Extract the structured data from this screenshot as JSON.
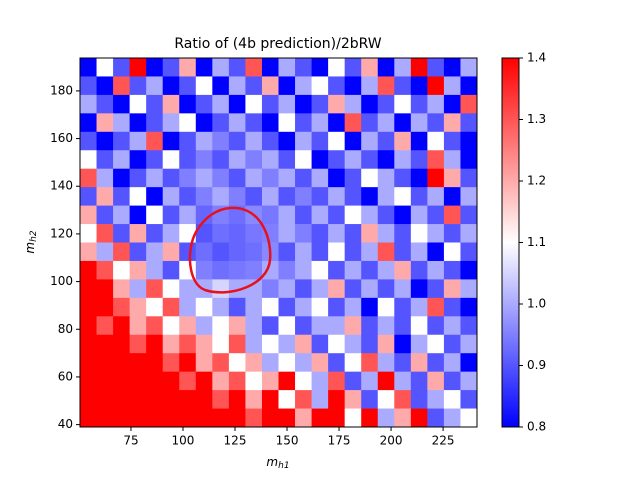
{
  "chart_data": {
    "type": "heatmap",
    "title": "Ratio of (4b prediction)/2bRW",
    "xlabel": {
      "base": "m",
      "sub": "h1"
    },
    "ylabel": {
      "base": "m",
      "sub": "h2"
    },
    "xlim": [
      50.5,
      241.3
    ],
    "ylim": [
      39,
      193.8
    ],
    "xticks": [
      75,
      100,
      125,
      150,
      175,
      200,
      225
    ],
    "yticks": [
      40,
      60,
      80,
      100,
      120,
      140,
      160,
      180
    ],
    "cmap": "bwr",
    "colorbar": {
      "vmin": 0.8,
      "vmax": 1.4,
      "ticks": [
        0.8,
        0.9,
        {
          "value": 1,
          "label": "1.0"
        },
        1.1,
        1.2,
        1.3,
        1.4
      ]
    },
    "z": [
      [
        0.8,
        1.1,
        0.9,
        1.4,
        0.8,
        0.9,
        1.2,
        0.8,
        1.0,
        0.9,
        1.3,
        0.8,
        1.0,
        0.9,
        0.8,
        1.1,
        0.9,
        1.2,
        0.8,
        1.0,
        1.4,
        0.9,
        0.8,
        1.0
      ],
      [
        0.9,
        0.8,
        1.3,
        0.9,
        1.0,
        0.8,
        0.9,
        1.1,
        0.8,
        1.0,
        0.9,
        1.2,
        0.8,
        1.0,
        1.1,
        0.9,
        0.8,
        1.0,
        1.3,
        0.9,
        0.8,
        1.4,
        1.0,
        0.8
      ],
      [
        1.0,
        0.9,
        0.8,
        1.1,
        0.9,
        1.2,
        0.8,
        0.9,
        1.0,
        0.8,
        1.1,
        0.9,
        1.0,
        0.8,
        0.9,
        1.2,
        1.0,
        0.8,
        0.9,
        1.1,
        0.9,
        1.0,
        0.8,
        1.3
      ],
      [
        0.8,
        1.2,
        1.0,
        0.8,
        0.9,
        1.0,
        1.1,
        0.8,
        0.9,
        1.0,
        0.9,
        0.8,
        1.1,
        0.9,
        1.0,
        0.8,
        1.3,
        0.9,
        1.0,
        0.8,
        1.0,
        0.9,
        1.2,
        0.9
      ],
      [
        0.9,
        0.8,
        0.9,
        1.0,
        1.3,
        0.8,
        0.9,
        1.0,
        0.95,
        0.9,
        1.0,
        0.9,
        0.8,
        1.0,
        0.9,
        1.1,
        0.8,
        1.0,
        0.9,
        1.2,
        0.8,
        1.1,
        0.9,
        0.8
      ],
      [
        1.1,
        0.9,
        1.0,
        0.8,
        0.9,
        1.1,
        0.9,
        0.95,
        0.9,
        1.0,
        0.95,
        1.0,
        0.9,
        1.1,
        0.8,
        0.9,
        1.0,
        0.9,
        0.8,
        1.0,
        0.9,
        1.3,
        1.0,
        0.8
      ],
      [
        1.3,
        1.0,
        0.8,
        0.9,
        1.0,
        0.9,
        0.95,
        1.0,
        0.95,
        0.9,
        1.0,
        0.95,
        1.0,
        0.9,
        1.0,
        0.8,
        0.9,
        1.1,
        1.0,
        0.9,
        0.8,
        1.4,
        1.2,
        0.9
      ],
      [
        0.9,
        1.2,
        0.9,
        1.1,
        0.8,
        1.0,
        0.9,
        0.95,
        1.0,
        0.95,
        0.9,
        1.0,
        0.9,
        0.95,
        0.9,
        1.0,
        0.9,
        0.8,
        1.0,
        1.1,
        0.9,
        1.0,
        0.8,
        1.0
      ],
      [
        1.2,
        0.9,
        1.0,
        0.8,
        1.1,
        0.9,
        1.0,
        0.92,
        0.95,
        0.93,
        0.96,
        0.94,
        1.0,
        0.9,
        1.0,
        0.9,
        1.1,
        1.0,
        0.9,
        0.8,
        1.0,
        0.9,
        1.3,
        0.9
      ],
      [
        1.1,
        1.3,
        0.9,
        1.2,
        0.9,
        1.0,
        1.1,
        0.9,
        0.93,
        0.92,
        0.94,
        0.95,
        1.0,
        0.95,
        0.9,
        1.0,
        0.9,
        1.2,
        1.0,
        0.9,
        1.1,
        1.0,
        0.9,
        1.0
      ],
      [
        1.2,
        1.0,
        1.3,
        0.9,
        1.0,
        1.2,
        0.9,
        0.93,
        0.9,
        0.92,
        0.93,
        0.96,
        0.9,
        1.0,
        0.9,
        1.1,
        0.9,
        1.0,
        1.3,
        0.9,
        1.0,
        0.8,
        1.1,
        0.9
      ],
      [
        1.4,
        1.3,
        1.1,
        1.2,
        1.0,
        0.9,
        1.1,
        0.95,
        0.93,
        0.94,
        0.95,
        1.0,
        0.95,
        1.0,
        1.1,
        0.9,
        1.0,
        0.9,
        1.0,
        1.2,
        0.9,
        1.0,
        0.9,
        0.8
      ],
      [
        1.4,
        1.4,
        1.2,
        1.0,
        1.3,
        1.1,
        1.0,
        1.0,
        1.05,
        1.0,
        1.0,
        0.95,
        1.0,
        0.9,
        1.0,
        1.2,
        0.9,
        1.0,
        0.9,
        1.0,
        0.8,
        0.9,
        1.2,
        1.0
      ],
      [
        1.4,
        1.4,
        1.3,
        1.2,
        1.1,
        1.3,
        1.0,
        1.1,
        1.0,
        0.9,
        1.0,
        1.1,
        0.9,
        1.0,
        1.1,
        0.9,
        1.0,
        0.8,
        1.1,
        0.9,
        1.0,
        1.3,
        0.9,
        0.8
      ],
      [
        1.4,
        1.3,
        1.4,
        1.2,
        1.3,
        1.1,
        1.2,
        1.0,
        1.1,
        1.2,
        1.0,
        0.9,
        1.1,
        0.9,
        1.0,
        1.0,
        1.2,
        0.9,
        1.0,
        0.9,
        1.1,
        0.9,
        1.0,
        0.9
      ],
      [
        1.4,
        1.4,
        1.4,
        1.3,
        1.4,
        1.2,
        1.3,
        1.2,
        1.1,
        1.3,
        1.0,
        1.1,
        1.0,
        1.2,
        0.9,
        1.1,
        1.0,
        0.9,
        1.2,
        0.8,
        1.0,
        1.1,
        0.9,
        1.0
      ],
      [
        1.4,
        1.4,
        1.4,
        1.4,
        1.4,
        1.3,
        1.4,
        1.2,
        1.3,
        1.1,
        1.2,
        1.0,
        1.1,
        1.0,
        1.2,
        0.9,
        1.1,
        1.3,
        1.0,
        0.9,
        1.2,
        0.9,
        1.0,
        0.8
      ],
      [
        1.4,
        1.4,
        1.4,
        1.4,
        1.4,
        1.4,
        1.3,
        1.4,
        1.2,
        1.3,
        1.1,
        1.2,
        1.4,
        1.1,
        1.0,
        1.3,
        0.9,
        1.0,
        1.4,
        1.0,
        0.9,
        1.2,
        0.9,
        1.0
      ],
      [
        1.4,
        1.4,
        1.4,
        1.4,
        1.4,
        1.4,
        1.4,
        1.4,
        1.3,
        1.4,
        1.2,
        1.4,
        1.1,
        1.3,
        1.0,
        1.4,
        1.2,
        0.9,
        1.1,
        1.3,
        0.9,
        1.0,
        1.1,
        0.9
      ],
      [
        1.4,
        1.4,
        1.4,
        1.4,
        1.4,
        1.4,
        1.4,
        1.4,
        1.4,
        1.4,
        1.3,
        1.4,
        1.4,
        1.2,
        1.4,
        1.4,
        1.1,
        1.4,
        1.0,
        1.2,
        1.4,
        0.9,
        1.0,
        1.1
      ]
    ]
  }
}
